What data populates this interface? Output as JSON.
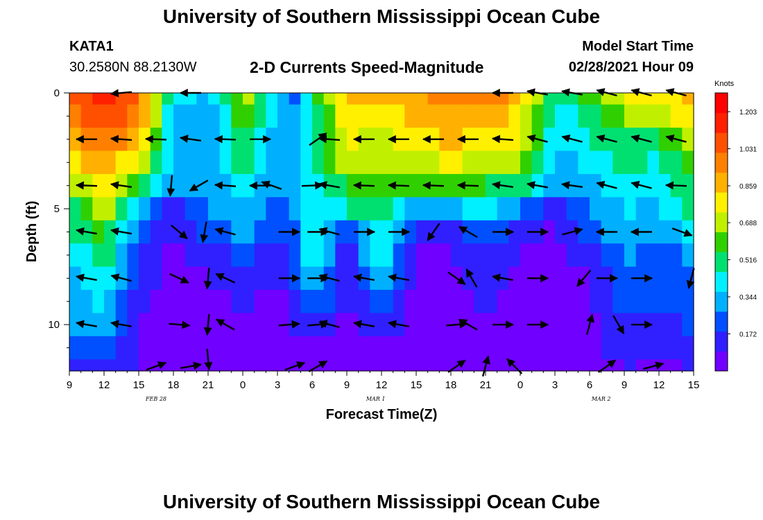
{
  "header": {
    "title_top": "University of Southern Mississippi Ocean Cube",
    "title_bottom": "University of Southern Mississippi Ocean Cube",
    "station_id": "KATA1",
    "station_coords": "30.2580N 88.2130W",
    "plot_title": "2-D Currents Speed-Magnitude",
    "model_start_label": "Model Start Time",
    "model_start_value": "02/28/2021 Hour 09"
  },
  "chart_data": {
    "type": "heatmap",
    "title": "2-D Currents Speed-Magnitude",
    "xlabel": "Forecast Time(Z)",
    "ylabel": "Depth (ft)",
    "x_tick_labels": [
      "9",
      "12",
      "15",
      "18",
      "21",
      "0",
      "3",
      "6",
      "9",
      "12",
      "15",
      "18",
      "21",
      "0",
      "3",
      "6",
      "9",
      "12",
      "15"
    ],
    "x_hours_since_start": [
      0,
      3,
      6,
      9,
      12,
      15,
      18,
      19,
      21,
      24,
      27,
      30,
      33,
      36,
      39,
      42,
      45,
      48,
      51,
      54
    ],
    "date_labels": [
      "FEB 28",
      "MAR 1",
      "MAR 2"
    ],
    "date_label_hours": [
      7.5,
      26.5,
      46
    ],
    "xlim_hours": [
      0,
      54
    ],
    "y_tick_labels": [
      "0",
      "5",
      "10"
    ],
    "y_tick_values": [
      0,
      5,
      10
    ],
    "ylim": [
      0,
      12
    ],
    "colorbar": {
      "unit": "Knots",
      "tick_labels": [
        "1.203",
        "1.031",
        "0.859",
        "0.688",
        "0.516",
        "0.344",
        "0.172"
      ],
      "tick_values": [
        1.203,
        1.031,
        0.859,
        0.688,
        0.516,
        0.344,
        0.172
      ],
      "range": [
        0,
        1.29
      ],
      "colors": [
        "#7000ff",
        "#3020ff",
        "#0050ff",
        "#00b0ff",
        "#00f0ff",
        "#00e070",
        "#30d000",
        "#c0f000",
        "#fff000",
        "#ffb000",
        "#ff8000",
        "#ff5000",
        "#ff2000",
        "#ff0000"
      ]
    },
    "depth_levels": [
      0,
      1,
      2,
      3,
      4,
      5,
      6,
      7,
      8,
      9,
      10,
      11,
      12
    ],
    "speed_profiles": [
      {
        "hour": 0,
        "speeds": [
          1.05,
          0.98,
          0.9,
          0.8,
          0.62,
          0.5,
          0.44,
          0.4,
          0.35,
          0.32,
          0.28,
          0.2,
          0.15
        ]
      },
      {
        "hour": 3,
        "speeds": [
          1.15,
          1.1,
          1.0,
          0.9,
          0.8,
          0.7,
          0.58,
          0.52,
          0.46,
          0.4,
          0.33,
          0.24,
          0.16
        ]
      },
      {
        "hour": 6,
        "speeds": [
          1.0,
          0.95,
          0.85,
          0.75,
          0.55,
          0.4,
          0.28,
          0.18,
          0.14,
          0.12,
          0.1,
          0.09,
          0.08
        ]
      },
      {
        "hour": 9,
        "speeds": [
          0.45,
          0.35,
          0.33,
          0.32,
          0.28,
          0.12,
          0.08,
          0.05,
          0.05,
          0.05,
          0.05,
          0.05,
          0.05
        ]
      },
      {
        "hour": 12,
        "speeds": [
          0.35,
          0.32,
          0.3,
          0.28,
          0.28,
          0.27,
          0.22,
          0.16,
          0.1,
          0.06,
          0.05,
          0.05,
          0.05
        ]
      },
      {
        "hour": 15,
        "speeds": [
          0.7,
          0.6,
          0.55,
          0.5,
          0.45,
          0.38,
          0.3,
          0.2,
          0.14,
          0.1,
          0.07,
          0.05,
          0.05
        ]
      },
      {
        "hour": 18,
        "speeds": [
          0.4,
          0.35,
          0.32,
          0.3,
          0.28,
          0.25,
          0.2,
          0.12,
          0.1,
          0.08,
          0.07,
          0.06,
          0.05
        ]
      },
      {
        "hour": 19,
        "speeds": [
          0.2,
          0.3,
          0.3,
          0.3,
          0.28,
          0.25,
          0.2,
          0.15,
          0.12,
          0.1,
          0.08,
          0.06,
          0.05
        ]
      },
      {
        "hour": 21,
        "speeds": [
          0.5,
          0.45,
          0.45,
          0.42,
          0.4,
          0.45,
          0.5,
          0.48,
          0.42,
          0.3,
          0.15,
          0.08,
          0.05
        ]
      },
      {
        "hour": 24,
        "speeds": [
          0.85,
          0.8,
          0.75,
          0.7,
          0.55,
          0.45,
          0.2,
          0.12,
          0.1,
          0.08,
          0.06,
          0.05,
          0.05
        ]
      },
      {
        "hour": 27,
        "speeds": [
          0.85,
          0.8,
          0.72,
          0.68,
          0.6,
          0.55,
          0.5,
          0.45,
          0.4,
          0.28,
          0.15,
          0.08,
          0.05
        ]
      },
      {
        "hour": 30,
        "speeds": [
          0.9,
          0.85,
          0.8,
          0.72,
          0.55,
          0.3,
          0.15,
          0.06,
          0.05,
          0.05,
          0.05,
          0.05,
          0.05
        ]
      },
      {
        "hour": 33,
        "speeds": [
          0.95,
          0.9,
          0.85,
          0.75,
          0.6,
          0.3,
          0.15,
          0.08,
          0.06,
          0.05,
          0.05,
          0.05,
          0.05
        ]
      },
      {
        "hour": 36,
        "speeds": [
          1.0,
          0.9,
          0.8,
          0.72,
          0.55,
          0.45,
          0.3,
          0.2,
          0.15,
          0.12,
          0.1,
          0.08,
          0.06
        ]
      },
      {
        "hour": 39,
        "speeds": [
          0.85,
          0.8,
          0.75,
          0.7,
          0.55,
          0.25,
          0.12,
          0.08,
          0.06,
          0.05,
          0.05,
          0.05,
          0.05
        ]
      },
      {
        "hour": 42,
        "speeds": [
          0.45,
          0.4,
          0.36,
          0.32,
          0.28,
          0.12,
          0.08,
          0.06,
          0.05,
          0.05,
          0.05,
          0.05,
          0.05
        ]
      },
      {
        "hour": 45,
        "speeds": [
          0.6,
          0.5,
          0.45,
          0.4,
          0.35,
          0.3,
          0.22,
          0.15,
          0.1,
          0.07,
          0.05,
          0.05,
          0.05
        ]
      },
      {
        "hour": 48,
        "speeds": [
          0.75,
          0.65,
          0.55,
          0.5,
          0.42,
          0.38,
          0.34,
          0.3,
          0.26,
          0.22,
          0.18,
          0.14,
          0.1
        ]
      },
      {
        "hour": 51,
        "speeds": [
          0.8,
          0.7,
          0.55,
          0.45,
          0.4,
          0.35,
          0.3,
          0.25,
          0.22,
          0.18,
          0.15,
          0.12,
          0.08
        ]
      },
      {
        "hour": 54,
        "speeds": [
          0.85,
          0.8,
          0.7,
          0.65,
          0.55,
          0.5,
          0.4,
          0.3,
          0.25,
          0.22,
          0.2,
          0.15,
          0.1
        ]
      }
    ],
    "vectors": [
      {
        "hour": 4.5,
        "depth": 0,
        "dir": 185
      },
      {
        "hour": 10.5,
        "depth": 0,
        "dir": 180
      },
      {
        "hour": 37.5,
        "depth": 0,
        "dir": 180
      },
      {
        "hour": 40.5,
        "depth": 0,
        "dir": 170
      },
      {
        "hour": 43.5,
        "depth": 0,
        "dir": 170
      },
      {
        "hour": 46.5,
        "depth": 0,
        "dir": 165
      },
      {
        "hour": 49.5,
        "depth": 0,
        "dir": 165
      },
      {
        "hour": 52.5,
        "depth": 0,
        "dir": 165
      },
      {
        "hour": 1.5,
        "depth": 2,
        "dir": 180
      },
      {
        "hour": 4.5,
        "depth": 2,
        "dir": 176
      },
      {
        "hour": 7.5,
        "depth": 2,
        "dir": 178
      },
      {
        "hour": 10.5,
        "depth": 2,
        "dir": 172
      },
      {
        "hour": 13.5,
        "depth": 2,
        "dir": 178
      },
      {
        "hour": 16.5,
        "depth": 2,
        "dir": 0
      },
      {
        "hour": 21.5,
        "depth": 2,
        "dir": 35
      },
      {
        "hour": 22.5,
        "depth": 2,
        "dir": 176
      },
      {
        "hour": 25.5,
        "depth": 2,
        "dir": 180
      },
      {
        "hour": 28.5,
        "depth": 2,
        "dir": 180
      },
      {
        "hour": 31.5,
        "depth": 2,
        "dir": 180
      },
      {
        "hour": 34.5,
        "depth": 2,
        "dir": 180
      },
      {
        "hour": 37.5,
        "depth": 2,
        "dir": 176
      },
      {
        "hour": 40.5,
        "depth": 2,
        "dir": 165
      },
      {
        "hour": 43.5,
        "depth": 2,
        "dir": 165
      },
      {
        "hour": 46.5,
        "depth": 2,
        "dir": 165
      },
      {
        "hour": 49.5,
        "depth": 2,
        "dir": 165
      },
      {
        "hour": 52.5,
        "depth": 2,
        "dir": 165
      },
      {
        "hour": 1.5,
        "depth": 4,
        "dir": 178
      },
      {
        "hour": 4.5,
        "depth": 4,
        "dir": 172
      },
      {
        "hour": 8.8,
        "depth": 4,
        "dir": 265
      },
      {
        "hour": 11.2,
        "depth": 4,
        "dir": 210
      },
      {
        "hour": 13.5,
        "depth": 4,
        "dir": 176
      },
      {
        "hour": 16.5,
        "depth": 4,
        "dir": 180
      },
      {
        "hour": 17.5,
        "depth": 4,
        "dir": 160
      },
      {
        "hour": 21,
        "depth": 4,
        "dir": 2
      },
      {
        "hour": 22.5,
        "depth": 4,
        "dir": 170
      },
      {
        "hour": 25.5,
        "depth": 4,
        "dir": 178
      },
      {
        "hour": 28.5,
        "depth": 4,
        "dir": 178
      },
      {
        "hour": 31.5,
        "depth": 4,
        "dir": 178
      },
      {
        "hour": 34.5,
        "depth": 4,
        "dir": 178
      },
      {
        "hour": 37.5,
        "depth": 4,
        "dir": 172
      },
      {
        "hour": 40.5,
        "depth": 4,
        "dir": 170
      },
      {
        "hour": 43.5,
        "depth": 4,
        "dir": 172
      },
      {
        "hour": 46.5,
        "depth": 4,
        "dir": 165
      },
      {
        "hour": 49.5,
        "depth": 4,
        "dir": 165
      },
      {
        "hour": 52.5,
        "depth": 4,
        "dir": 178
      },
      {
        "hour": 1.5,
        "depth": 6,
        "dir": 170
      },
      {
        "hour": 4.5,
        "depth": 6,
        "dir": 170
      },
      {
        "hour": 9.5,
        "depth": 6,
        "dir": 320
      },
      {
        "hour": 11.7,
        "depth": 6,
        "dir": 260
      },
      {
        "hour": 13.5,
        "depth": 6,
        "dir": 165
      },
      {
        "hour": 19,
        "depth": 6,
        "dir": 0
      },
      {
        "hour": 21.5,
        "depth": 6,
        "dir": 0
      },
      {
        "hour": 22.5,
        "depth": 6,
        "dir": 165
      },
      {
        "hour": 25.5,
        "depth": 6,
        "dir": 0
      },
      {
        "hour": 28.5,
        "depth": 6,
        "dir": 0
      },
      {
        "hour": 31.5,
        "depth": 6,
        "dir": 235
      },
      {
        "hour": 34.5,
        "depth": 6,
        "dir": 150
      },
      {
        "hour": 37.5,
        "depth": 6,
        "dir": 0
      },
      {
        "hour": 40.5,
        "depth": 6,
        "dir": 0
      },
      {
        "hour": 43.5,
        "depth": 6,
        "dir": 15
      },
      {
        "hour": 46.5,
        "depth": 6,
        "dir": 180
      },
      {
        "hour": 49.5,
        "depth": 6,
        "dir": 180
      },
      {
        "hour": 53,
        "depth": 6,
        "dir": 340
      },
      {
        "hour": 1.5,
        "depth": 8,
        "dir": 170
      },
      {
        "hour": 4.5,
        "depth": 8,
        "dir": 165
      },
      {
        "hour": 9.5,
        "depth": 8,
        "dir": 335
      },
      {
        "hour": 12,
        "depth": 8,
        "dir": 265
      },
      {
        "hour": 13.5,
        "depth": 8,
        "dir": 155
      },
      {
        "hour": 19,
        "depth": 8,
        "dir": 0
      },
      {
        "hour": 21.5,
        "depth": 8,
        "dir": 0
      },
      {
        "hour": 22.5,
        "depth": 8,
        "dir": 165
      },
      {
        "hour": 25.5,
        "depth": 8,
        "dir": 170
      },
      {
        "hour": 28.5,
        "depth": 8,
        "dir": 170
      },
      {
        "hour": 33.5,
        "depth": 8,
        "dir": 325
      },
      {
        "hour": 34.8,
        "depth": 8,
        "dir": 120
      },
      {
        "hour": 37.5,
        "depth": 8,
        "dir": 170
      },
      {
        "hour": 40.5,
        "depth": 8,
        "dir": 0
      },
      {
        "hour": 44.5,
        "depth": 8,
        "dir": 230
      },
      {
        "hour": 46.5,
        "depth": 8,
        "dir": 0
      },
      {
        "hour": 49.5,
        "depth": 8,
        "dir": 0
      },
      {
        "hour": 53.8,
        "depth": 8,
        "dir": 255
      },
      {
        "hour": 1.5,
        "depth": 10,
        "dir": 170
      },
      {
        "hour": 4.5,
        "depth": 10,
        "dir": 170
      },
      {
        "hour": 9.5,
        "depth": 10,
        "dir": 355
      },
      {
        "hour": 12,
        "depth": 10,
        "dir": 265
      },
      {
        "hour": 13.5,
        "depth": 10,
        "dir": 150
      },
      {
        "hour": 19,
        "depth": 10,
        "dir": 5
      },
      {
        "hour": 21.5,
        "depth": 10,
        "dir": 5
      },
      {
        "hour": 22.5,
        "depth": 10,
        "dir": 165
      },
      {
        "hour": 25.5,
        "depth": 10,
        "dir": 170
      },
      {
        "hour": 28.5,
        "depth": 10,
        "dir": 170
      },
      {
        "hour": 33.5,
        "depth": 10,
        "dir": 5
      },
      {
        "hour": 34.5,
        "depth": 10,
        "dir": 150
      },
      {
        "hour": 37.5,
        "depth": 10,
        "dir": 0
      },
      {
        "hour": 40.5,
        "depth": 10,
        "dir": 0
      },
      {
        "hour": 45,
        "depth": 10,
        "dir": 75
      },
      {
        "hour": 47.5,
        "depth": 10,
        "dir": 300
      },
      {
        "hour": 49.5,
        "depth": 10,
        "dir": 0
      },
      {
        "hour": 7.5,
        "depth": 11.8,
        "dir": 20
      },
      {
        "hour": 10.5,
        "depth": 11.8,
        "dir": 10
      },
      {
        "hour": 12,
        "depth": 11.5,
        "dir": 275
      },
      {
        "hour": 19.5,
        "depth": 11.8,
        "dir": 20
      },
      {
        "hour": 21.5,
        "depth": 11.8,
        "dir": 30
      },
      {
        "hour": 33.5,
        "depth": 11.8,
        "dir": 35
      },
      {
        "hour": 36,
        "depth": 11.8,
        "dir": 75
      },
      {
        "hour": 38.5,
        "depth": 11.8,
        "dir": 135
      },
      {
        "hour": 46.5,
        "depth": 11.8,
        "dir": 35
      },
      {
        "hour": 50.5,
        "depth": 11.8,
        "dir": 15
      }
    ],
    "grid": false,
    "legend_placement": "right"
  }
}
